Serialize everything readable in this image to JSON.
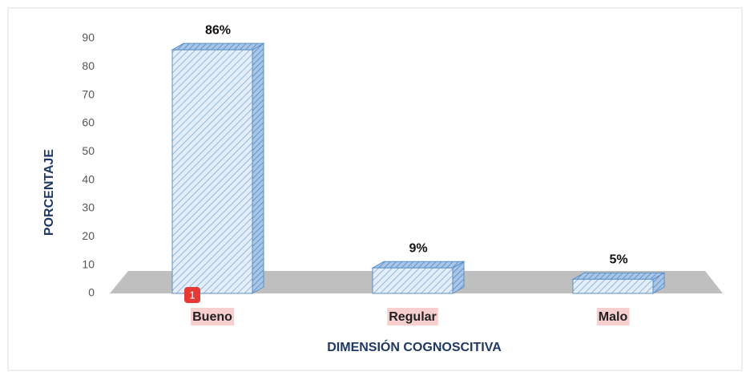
{
  "chart_data": {
    "type": "bar3d",
    "categories": [
      "Bueno",
      "Regular",
      "Malo"
    ],
    "values": [
      86,
      9,
      5
    ],
    "value_labels": [
      "86%",
      "9%",
      "5%"
    ],
    "color": "#5b8fc7",
    "ylim": [
      0,
      90
    ],
    "yticks": [
      0,
      10,
      20,
      30,
      40,
      50,
      60,
      70,
      80,
      90
    ],
    "ylabel": "PORCENTAJE",
    "xlabel": "DIMENSIÓN COGNOSCITIVA",
    "badge": "1"
  }
}
